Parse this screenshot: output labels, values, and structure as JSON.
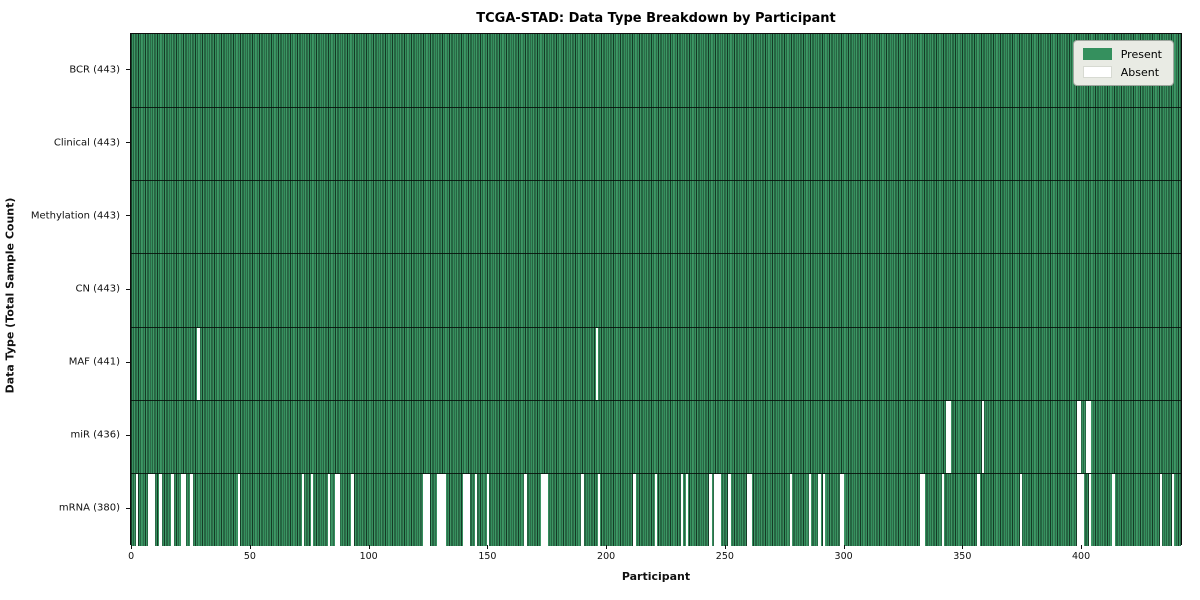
{
  "title": "TCGA-STAD: Data Type Breakdown by Participant",
  "xlabel": "Participant",
  "ylabel": "Data Type (Total Sample Count)",
  "legend": {
    "present_label": "Present",
    "absent_label": "Absent"
  },
  "colors": {
    "present": "#35905e",
    "absent": "#ffffff",
    "bar_edge": "#0a1a10",
    "legend_bg": "#e9ebe4"
  },
  "chart_data": {
    "type": "heatmap",
    "title": "TCGA-STAD: Data Type Breakdown by Participant",
    "xlabel": "Participant",
    "ylabel": "Data Type (Total Sample Count)",
    "legend": [
      "Present",
      "Absent"
    ],
    "legend_position": "upper right",
    "n_participants": 443,
    "x_axis_range": [
      -0.5,
      442.5
    ],
    "x_ticks": [
      0,
      50,
      100,
      150,
      200,
      250,
      300,
      350,
      400
    ],
    "rows": [
      {
        "label": "BCR (443)",
        "data_type": "BCR",
        "present_count": 443,
        "absent_count": 0,
        "absent_participants": []
      },
      {
        "label": "Clinical (443)",
        "data_type": "Clinical",
        "present_count": 443,
        "absent_count": 0,
        "absent_participants": []
      },
      {
        "label": "Methylation (443)",
        "data_type": "Methylation",
        "present_count": 443,
        "absent_count": 0,
        "absent_participants": []
      },
      {
        "label": "CN (443)",
        "data_type": "CN",
        "present_count": 443,
        "absent_count": 0,
        "absent_participants": []
      },
      {
        "label": "MAF (441)",
        "data_type": "MAF",
        "present_count": 441,
        "absent_count": 2,
        "absent_participants": [
          28,
          196
        ]
      },
      {
        "label": "miR (436)",
        "data_type": "miR",
        "present_count": 436,
        "absent_count": 7,
        "absent_participants": [
          344,
          345,
          359,
          399,
          400,
          403,
          404
        ]
      },
      {
        "label": "mRNA (380)",
        "data_type": "mRNA",
        "present_count": 380,
        "absent_count": 63,
        "absent_participants": [
          2,
          7,
          8,
          9,
          12,
          17,
          21,
          22,
          25,
          45,
          72,
          76,
          83,
          86,
          87,
          93,
          123,
          124,
          125,
          129,
          130,
          131,
          132,
          140,
          141,
          142,
          145,
          150,
          166,
          173,
          174,
          175,
          190,
          197,
          212,
          221,
          232,
          234,
          244,
          246,
          247,
          248,
          252,
          260,
          261,
          278,
          286,
          290,
          292,
          299,
          300,
          333,
          334,
          342,
          357,
          375,
          399,
          400,
          401,
          404,
          414,
          434,
          439
        ]
      }
    ]
  }
}
